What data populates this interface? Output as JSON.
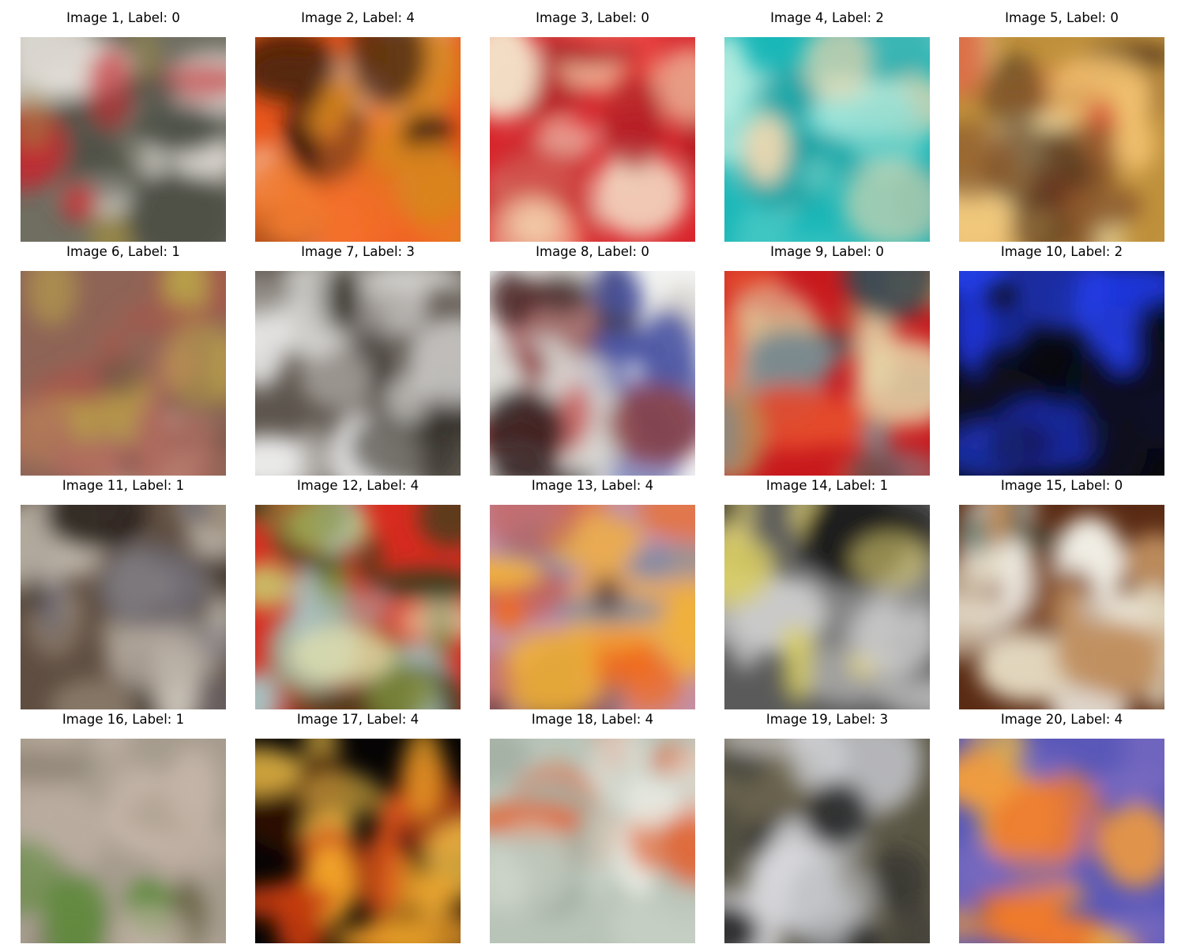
{
  "figure": {
    "images": [
      {
        "title": "Image 1, Label: 0",
        "label": 0,
        "palette": [
          "#6f6e61",
          "#c32a2f",
          "#ece9e4",
          "#9b8a45",
          "#d9d6cf",
          "#4b4e44"
        ]
      },
      {
        "title": "Image 2, Label: 4",
        "label": 4,
        "palette": [
          "#e8561c",
          "#f07a2e",
          "#1f0c08",
          "#f4c6a0",
          "#d8841f",
          "#f36a26"
        ]
      },
      {
        "title": "Image 3, Label: 0",
        "label": 0,
        "palette": [
          "#d8252c",
          "#ef4a46",
          "#f2c7a5",
          "#a61c22",
          "#f4e0c8",
          "#c83735"
        ]
      },
      {
        "title": "Image 4, Label: 2",
        "label": 2,
        "palette": [
          "#1ab7b8",
          "#88d9cf",
          "#e8d7b0",
          "#0f9ea0",
          "#b5ecdf",
          "#43c6c3"
        ]
      },
      {
        "title": "Image 5, Label: 0",
        "label": 0,
        "palette": [
          "#c0913c",
          "#f2e1a6",
          "#4a2e1a",
          "#d9603c",
          "#8c5a2c",
          "#f2c170"
        ]
      },
      {
        "title": "Image 6, Label: 1",
        "label": 1,
        "palette": [
          "#8e6456",
          "#b06a5e",
          "#b9a24a",
          "#c9a08f",
          "#6f4f45",
          "#a5584c"
        ]
      },
      {
        "title": "Image 7, Label: 3",
        "label": 3,
        "palette": [
          "#5d554d",
          "#d7d6d2",
          "#2f2a24",
          "#b0aca6",
          "#efefef",
          "#7b746c"
        ]
      },
      {
        "title": "Image 8, Label: 0",
        "label": 0,
        "palette": [
          "#f3f4f2",
          "#4b55a3",
          "#2a1a1a",
          "#c43c3c",
          "#8c3c3c",
          "#d7d4cf"
        ]
      },
      {
        "title": "Image 9, Label: 0",
        "label": 0,
        "palette": [
          "#c8191d",
          "#b88c55",
          "#3b4a52",
          "#e6d2a5",
          "#e44a2c",
          "#7b8a8e"
        ]
      },
      {
        "title": "Image 10, Label: 2",
        "label": 2,
        "palette": [
          "#08090f",
          "#1b33d6",
          "#0a0e22",
          "#233ee8",
          "#0c1230",
          "#111426"
        ]
      },
      {
        "title": "Image 11, Label: 1",
        "label": 1,
        "palette": [
          "#5e4d40",
          "#d9d3c8",
          "#6f6c77",
          "#2e2520",
          "#9a8a78",
          "#b7aea3"
        ]
      },
      {
        "title": "Image 12, Label: 4",
        "label": 4,
        "palette": [
          "#d72b1f",
          "#c9c46a",
          "#a9c0c0",
          "#3c3f1c",
          "#e9e7b5",
          "#7f8a3a"
        ]
      },
      {
        "title": "Image 13, Label: 4",
        "label": 4,
        "palette": [
          "#c490a6",
          "#f06a1e",
          "#f2b23a",
          "#3c2020",
          "#7f8aa6",
          "#c25f5a"
        ]
      },
      {
        "title": "Image 14, Label: 1",
        "label": 1,
        "palette": [
          "#5a5a5a",
          "#d9ce5a",
          "#1e1e1e",
          "#c9c9c9",
          "#8a8a8a",
          "#f0e07a"
        ]
      },
      {
        "title": "Image 15, Label: 0",
        "label": 0,
        "palette": [
          "#5a2b14",
          "#f0ede4",
          "#c09060",
          "#2d4a3c",
          "#8c5a3a",
          "#e3d8c0"
        ]
      },
      {
        "title": "Image 16, Label: 1",
        "label": 1,
        "palette": [
          "#a69c8e",
          "#b8a99c",
          "#6f6a4e",
          "#5d8a3a",
          "#c8b8ac",
          "#8e8474"
        ]
      },
      {
        "title": "Image 17, Label: 4",
        "label": 4,
        "palette": [
          "#060404",
          "#e8581c",
          "#f2a62a",
          "#3a1208",
          "#c23a10",
          "#f7c64a"
        ]
      },
      {
        "title": "Image 18, Label: 4",
        "label": 4,
        "palette": [
          "#b9c4b8",
          "#cfd6cb",
          "#e06a3a",
          "#a4b0a4",
          "#e9ece4",
          "#c97b5c"
        ]
      },
      {
        "title": "Image 19, Label: 3",
        "label": 3,
        "palette": [
          "#5a5644",
          "#d8d8dc",
          "#2d2e2e",
          "#7a7258",
          "#b9babd",
          "#4a4a40"
        ]
      },
      {
        "title": "Image 20, Label: 4",
        "label": 4,
        "palette": [
          "#5a58b8",
          "#f07a2a",
          "#f29c3c",
          "#c8682a",
          "#7a6ac0",
          "#e8b84a"
        ]
      }
    ]
  }
}
